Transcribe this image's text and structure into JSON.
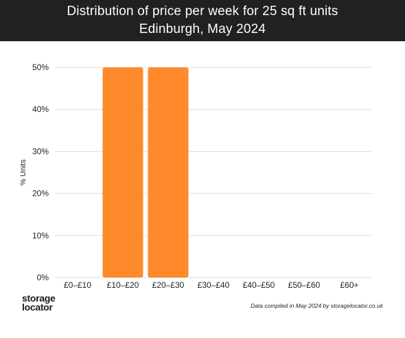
{
  "header": {
    "title_line1": "Distribution of price per week for 25 sq ft units",
    "title_line2": "Edinburgh, May 2024"
  },
  "chart_data": {
    "type": "bar",
    "title": "Distribution of price per week for 25 sq ft units",
    "subtitle": "Edinburgh, May 2024",
    "xlabel": "",
    "ylabel": "% Units",
    "categories": [
      "£0–£10",
      "£10–£20",
      "£20–£30",
      "£30–£40",
      "£40–£50",
      "£50–£60",
      "£60+"
    ],
    "values": [
      0,
      50,
      50,
      0,
      0,
      0,
      0
    ],
    "ylim": [
      0,
      50
    ],
    "yticks": [
      0,
      10,
      20,
      30,
      40,
      50
    ],
    "ytick_labels": [
      "0%",
      "10%",
      "20%",
      "30%",
      "40%",
      "50%"
    ],
    "grid": true,
    "bar_color": "#FF8A2B"
  },
  "brand": {
    "line1": "storage",
    "line2": "locator",
    "icon": "storagelocator-logo"
  },
  "footer": {
    "note": "Data compiled in May 2024 by storagelocator.co.uk"
  },
  "colors": {
    "header_bg": "#212121",
    "header_text": "#ffffff",
    "bar": "#FF8A2B",
    "gridline": "#dddddd"
  }
}
